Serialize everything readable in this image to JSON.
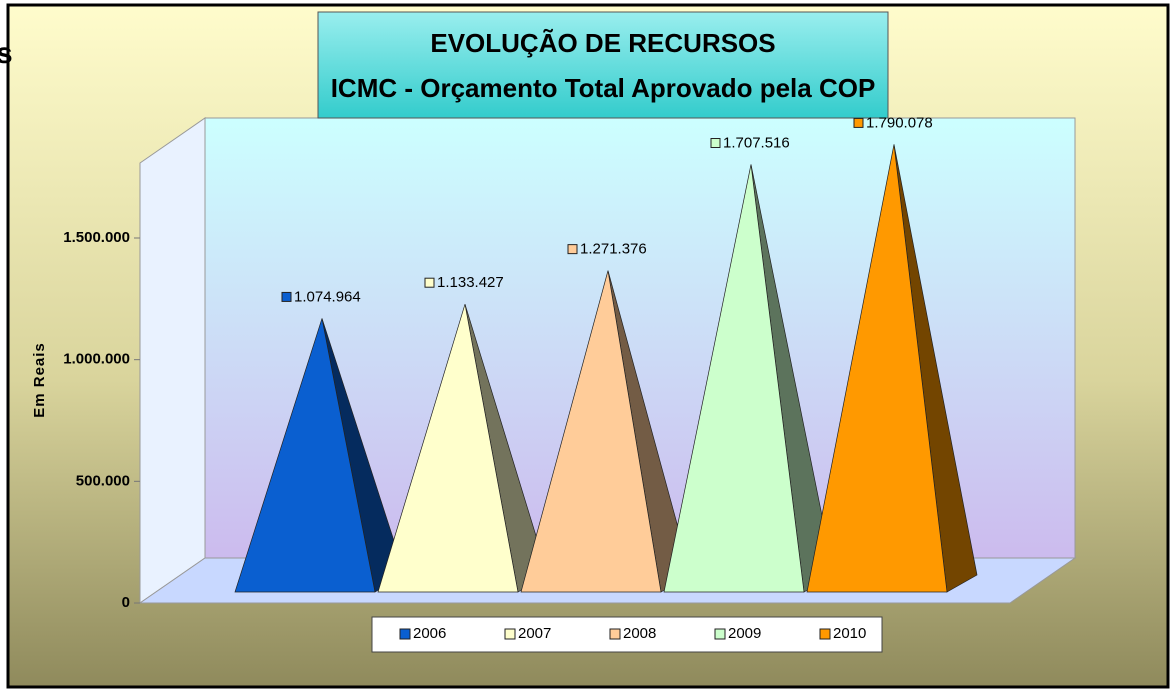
{
  "side_text": "s",
  "chart_data": {
    "type": "pyramid3d",
    "title": [
      "EVOLUÇÃO DE RECURSOS",
      "ICMC - Orçamento Total Aprovado pela COP"
    ],
    "y_label": "Em Reais",
    "series": [
      {
        "name": "2006",
        "color": "#0a5fd0",
        "values": [
          1074964
        ],
        "value_labels": [
          "1.074.964"
        ]
      },
      {
        "name": "2007",
        "color": "#ffffcc",
        "values": [
          1133427
        ],
        "value_labels": [
          "1.133.427"
        ]
      },
      {
        "name": "2008",
        "color": "#ffcc99",
        "values": [
          1271376
        ],
        "value_labels": [
          "1.271.376"
        ]
      },
      {
        "name": "2009",
        "color": "#ccffcc",
        "values": [
          1707516
        ],
        "value_labels": [
          "1.707.516"
        ]
      },
      {
        "name": "2010",
        "color": "#ff9900",
        "values": [
          1790078
        ],
        "value_labels": [
          "1.790.078"
        ]
      }
    ],
    "ylim": [
      0,
      1800000
    ],
    "yticks": [
      0,
      {
        "value": 500000,
        "label": "500.000"
      },
      {
        "value": 1000000,
        "label": "1.000.000"
      },
      {
        "value": 1500000,
        "label": "1.500.000"
      }
    ],
    "legend": "bottom"
  }
}
